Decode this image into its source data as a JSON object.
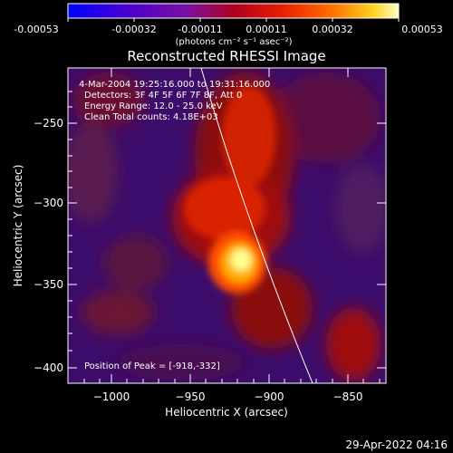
{
  "colorbar": {
    "ticks": [
      "-0.00053",
      "-0.00032",
      "-0.00011",
      "0.00011",
      "0.00032",
      "0.00053"
    ],
    "units": "(photons cm⁻² s⁻¹ asec⁻²)"
  },
  "title": "Reconstructed RHESSI Image",
  "info": {
    "time_range": "4-Mar-2004 19:25:16.000 to 19:31:16.000",
    "detectors": "Detectors: 3F 4F 5F 6F 7F 8F, Att 0",
    "energy": "Energy Range: 12.0 - 25.0 keV",
    "clean": "Clean     Total counts: 4.18E+03"
  },
  "peak_label": "Position of Peak = [-918,-332]",
  "axes": {
    "xlabel": "Heliocentric X (arcsec)",
    "ylabel": "Heliocentric Y (arcsec)",
    "xticks": [
      "−1000",
      "−950",
      "−900",
      "−850"
    ],
    "yticks": [
      "−250",
      "−300",
      "−350",
      "−400"
    ]
  },
  "date_stamp": "29-Apr-2022 04:16"
}
